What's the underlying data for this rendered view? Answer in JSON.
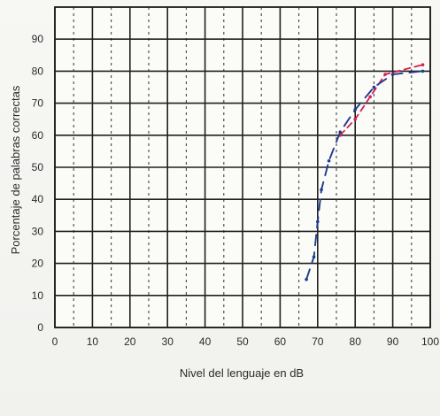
{
  "chart_data": {
    "type": "line",
    "title": "",
    "xlabel": "Nivel del lenguaje en dB",
    "ylabel": "Porcentaje de palabras correctas",
    "x_ticks": [
      0,
      10,
      20,
      30,
      40,
      50,
      60,
      70,
      80,
      90,
      100
    ],
    "y_ticks": [
      0,
      10,
      20,
      30,
      40,
      50,
      60,
      70,
      80,
      90
    ],
    "xlim": [
      0,
      100
    ],
    "ylim": [
      0,
      100
    ],
    "grid": {
      "major": true,
      "minor_vertical_dotted": true
    },
    "series": [
      {
        "style": "dashed",
        "color": "#d61f4f",
        "points": [
          {
            "x": 76,
            "y": 60
          },
          {
            "x": 80,
            "y": 65
          },
          {
            "x": 84,
            "y": 72
          },
          {
            "x": 88,
            "y": 79
          },
          {
            "x": 98,
            "y": 82
          }
        ]
      },
      {
        "style": "dashed",
        "color": "#213b8f",
        "points": [
          {
            "x": 67,
            "y": 15
          },
          {
            "x": 69,
            "y": 22
          },
          {
            "x": 70,
            "y": 33
          },
          {
            "x": 71,
            "y": 43
          },
          {
            "x": 73,
            "y": 52
          },
          {
            "x": 76,
            "y": 61
          },
          {
            "x": 80,
            "y": 68
          },
          {
            "x": 85,
            "y": 75
          },
          {
            "x": 90,
            "y": 79
          },
          {
            "x": 98,
            "y": 80
          }
        ]
      }
    ]
  }
}
